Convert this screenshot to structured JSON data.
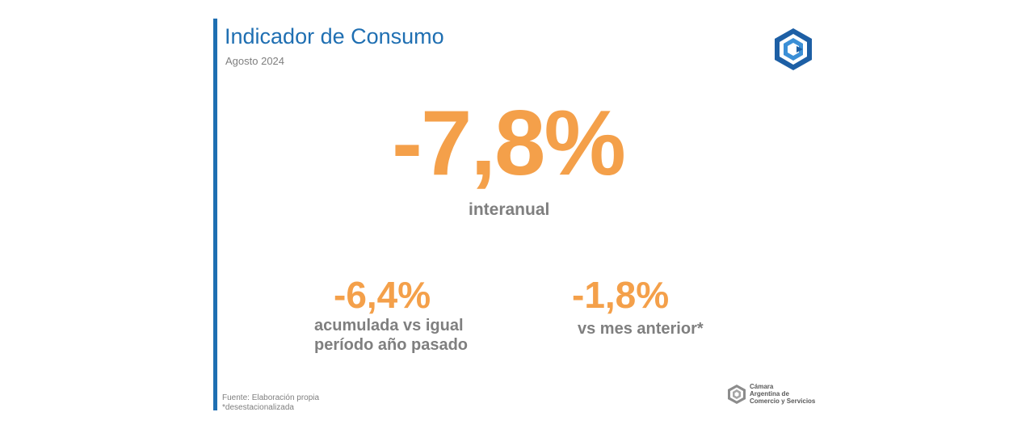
{
  "header": {
    "title": "Indicador de Consumo",
    "subtitle": "Agosto 2024"
  },
  "main_indicator": {
    "value": "-7,8%",
    "caption": "interanual"
  },
  "secondary_indicators": [
    {
      "value": "-6,4%",
      "caption_line1": "acumulada vs igual",
      "caption_line2": "período año pasado"
    },
    {
      "value": "-1,8%",
      "caption_line1": "vs mes anterior*"
    }
  ],
  "footer": {
    "source": "Fuente: Elaboración propia",
    "note": "*desestacionalizada",
    "brand_line1": "Cámara",
    "brand_line2": "Argentina de",
    "brand_line3": "Comercio y Servicios"
  },
  "colors": {
    "accent_blue": "#1f6fb2",
    "highlight_orange": "#f4a04a",
    "text_gray": "#7f7f7f"
  },
  "icons": {
    "top_logo": "cac-hexagon-logo-icon",
    "footer_logo": "cac-hexagon-logo-icon"
  }
}
